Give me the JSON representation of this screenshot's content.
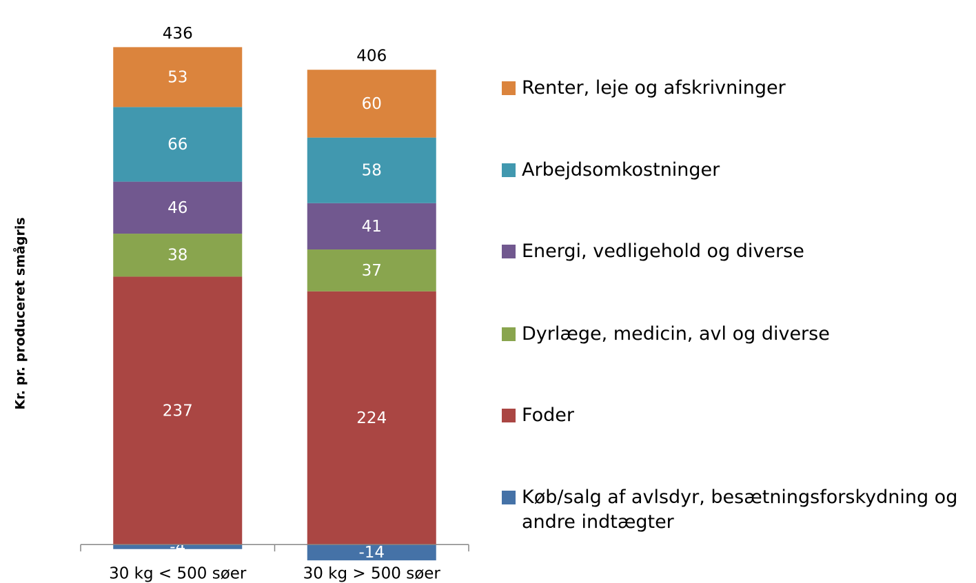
{
  "chart_data": {
    "type": "stacked_bar",
    "y_label": "Kr. pr. produceret smågris",
    "categories": [
      "30 kg < 500 søer",
      "30 kg > 500 søer"
    ],
    "series": [
      {
        "name": "Køb/salg af avlsdyr, besætningsforskydning og andre indtægter",
        "color": "#4572a7",
        "values": [
          -4,
          -14
        ]
      },
      {
        "name": "Foder",
        "color": "#aa4643",
        "values": [
          237,
          224
        ]
      },
      {
        "name": "Dyrlæge, medicin, avl og diverse",
        "color": "#89a54e",
        "values": [
          38,
          37
        ]
      },
      {
        "name": "Energi, vedligehold og diverse",
        "color": "#71588f",
        "values": [
          46,
          41
        ]
      },
      {
        "name": "Arbejdsomkostninger",
        "color": "#4198af",
        "values": [
          66,
          58
        ]
      },
      {
        "name": "Renter, leje og afskrivninger",
        "color": "#db843d",
        "values": [
          53,
          60
        ]
      }
    ],
    "totals": [
      436,
      406
    ],
    "ylim": [
      -20,
      450
    ],
    "legend": "right"
  }
}
